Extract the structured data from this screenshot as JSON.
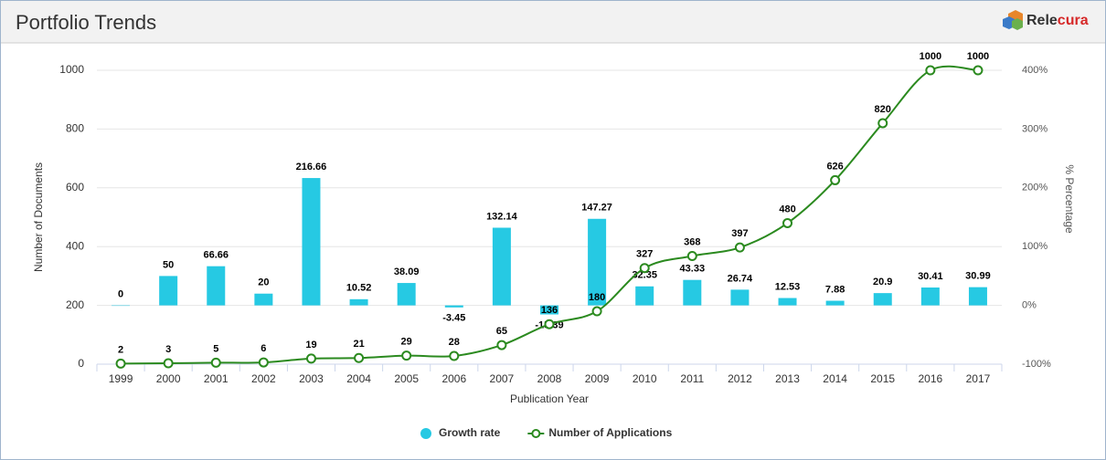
{
  "header": {
    "title": "Portfolio Trends",
    "brand": [
      "Rele",
      "cura"
    ]
  },
  "chart_data": {
    "type": "combo",
    "x_label": "Publication Year",
    "y_label": "Number of Documents",
    "y2_label": "% Percentage",
    "categories": [
      "1999",
      "2000",
      "2001",
      "2002",
      "2003",
      "2004",
      "2005",
      "2006",
      "2007",
      "2008",
      "2009",
      "2010",
      "2011",
      "2012",
      "2013",
      "2014",
      "2015",
      "2016",
      "2017"
    ],
    "series": [
      {
        "name": "Growth rate",
        "type": "bar",
        "axis": "y2",
        "color": "#26c9e3",
        "values": [
          0,
          50,
          66.66,
          20,
          216.66,
          10.52,
          38.09,
          -3.45,
          132.14,
          -15.39,
          147.27,
          32.35,
          43.33,
          26.74,
          12.53,
          7.88,
          20.9,
          30.41,
          30.99
        ]
      },
      {
        "name": "Number of Applications",
        "type": "line",
        "color": "#2b8a1f",
        "values": [
          2,
          3,
          5,
          6,
          19,
          21,
          29,
          28,
          65,
          136,
          180,
          327,
          368,
          397,
          480,
          626,
          820,
          1000,
          1000
        ]
      }
    ],
    "ylim": [
      0,
      1000
    ],
    "yticks": [
      0,
      200,
      400,
      600,
      800,
      1000
    ],
    "y2lim": [
      -100,
      400
    ],
    "y2ticks": [
      {
        "value": -100,
        "label": "-100%"
      },
      {
        "value": 0,
        "label": "0%"
      },
      {
        "value": 100,
        "label": "100%"
      },
      {
        "value": 200,
        "label": "200%"
      },
      {
        "value": 300,
        "label": "300%"
      },
      {
        "value": 400,
        "label": "400%"
      }
    ],
    "grid": true,
    "legend": "bottom"
  }
}
